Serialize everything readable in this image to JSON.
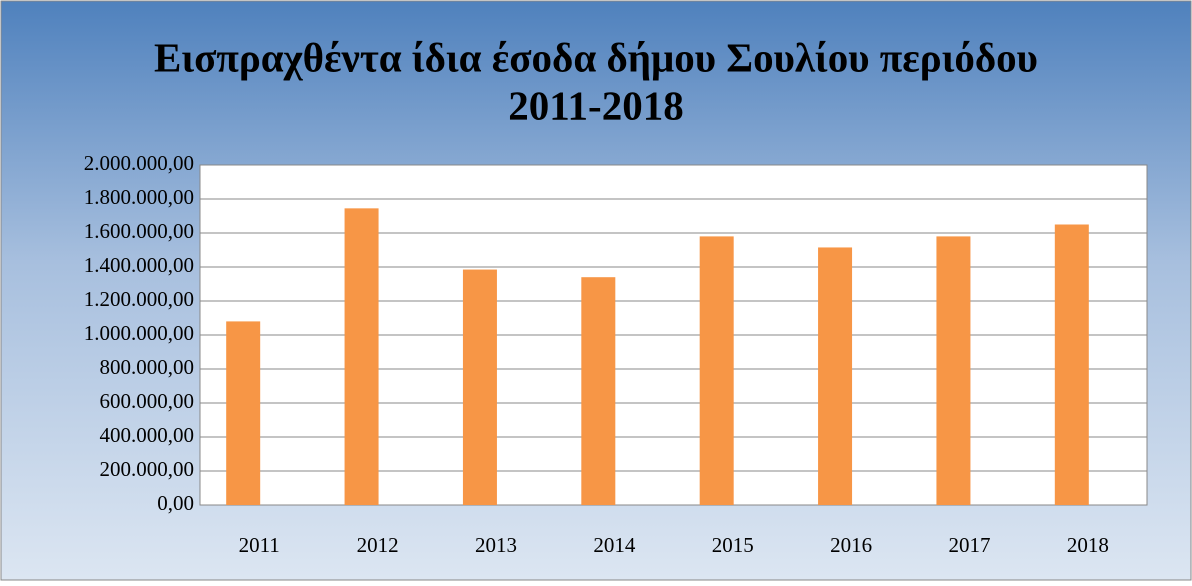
{
  "chart_data": {
    "type": "bar",
    "title": [
      "Εισπραχθέντα ίδια έσοδα δήμου Σουλίου περιόδου",
      "2011-2018"
    ],
    "categories": [
      "2011",
      "2012",
      "2013",
      "2014",
      "2015",
      "2016",
      "2017",
      "2018"
    ],
    "values": [
      1080000,
      1745000,
      1385000,
      1340000,
      1580000,
      1515000,
      1580000,
      1650000
    ],
    "color": "#f79646",
    "ylim": [
      0,
      2000000
    ],
    "yticks": [
      {
        "value": 0,
        "label": "0,00"
      },
      {
        "value": 200000,
        "label": "200.000,00"
      },
      {
        "value": 400000,
        "label": "400.000,00"
      },
      {
        "value": 600000,
        "label": "600.000,00"
      },
      {
        "value": 800000,
        "label": "800.000,00"
      },
      {
        "value": 1000000,
        "label": "1.000.000,00"
      },
      {
        "value": 1200000,
        "label": "1.200.000,00"
      },
      {
        "value": 1400000,
        "label": "1.400.000,00"
      },
      {
        "value": 1600000,
        "label": "1.600.000,00"
      },
      {
        "value": 1800000,
        "label": "1.800.000,00"
      },
      {
        "value": 2000000,
        "label": "2.000.000,00"
      }
    ],
    "grid": true
  }
}
